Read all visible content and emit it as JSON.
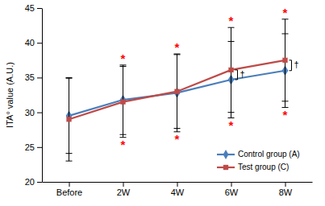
{
  "chart_data": {
    "type": "line",
    "y_label": "ITA° value (A.U.)",
    "categories": [
      "Before",
      "2W",
      "4W",
      "6W",
      "8W"
    ],
    "series": [
      {
        "name": "Control group (A)",
        "color": "#4a7ebb",
        "marker": "diamond",
        "values": [
          29.5,
          31.8,
          32.8,
          34.7,
          36.0
        ],
        "error": [
          5.4,
          5.0,
          5.6,
          5.5,
          5.3
        ]
      },
      {
        "name": "Test group (C)",
        "color": "#be4b48",
        "marker": "square",
        "values": [
          29.0,
          31.5,
          33.0,
          36.1,
          37.5
        ],
        "error": [
          6.0,
          5.1,
          5.3,
          6.1,
          5.9
        ]
      }
    ],
    "annotations": [
      {
        "text": "*",
        "color": "#ff0000",
        "categories": [
          "2W",
          "4W",
          "6W",
          "8W"
        ]
      },
      {
        "text": "†",
        "color": "#000000",
        "categories": [
          "6W",
          "8W"
        ]
      }
    ],
    "ylim": [
      20,
      45
    ],
    "yticks": [
      20,
      25,
      30,
      35,
      40,
      45
    ],
    "grid": false,
    "legend": "lower right"
  }
}
